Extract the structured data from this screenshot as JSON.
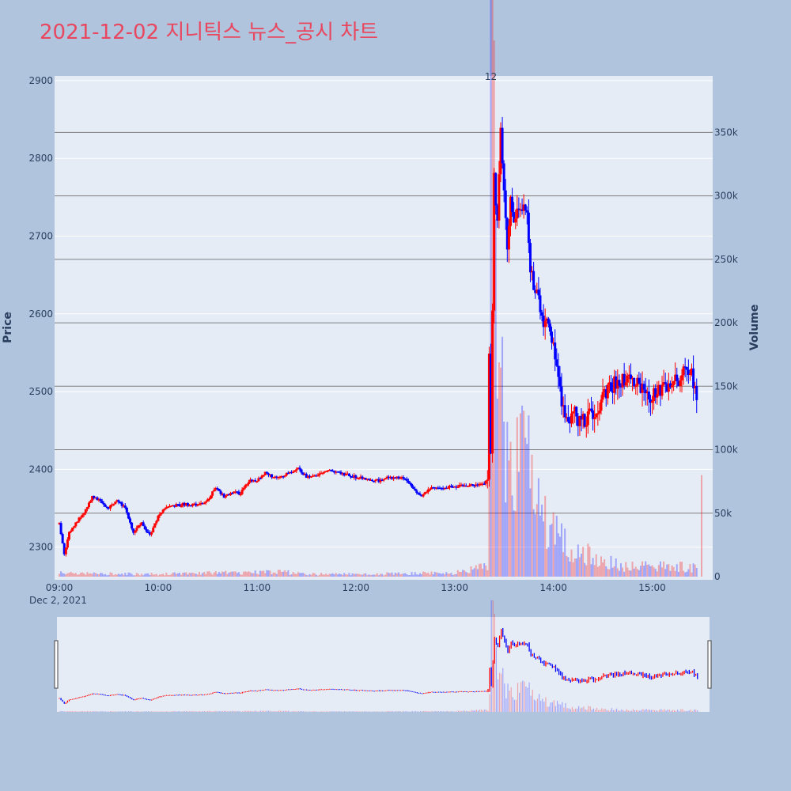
{
  "title": "2021-12-02 지니틱스 뉴스_공시 차트",
  "colors": {
    "background": "#b0c4de",
    "plot_bg": "#e5ecf6",
    "up": "#ff0000",
    "down": "#0000ff",
    "title": "#e8475f",
    "text": "#2a3f5f"
  },
  "chart_data": {
    "type": "candlestick",
    "title": "2021-12-02 지니틱스 뉴스_공시 차트",
    "y_title": "Price",
    "y2_title": "Volume",
    "x_date_label": "Dec 2, 2021",
    "x_ticks": [
      "09:00",
      "10:00",
      "11:00",
      "12:00",
      "13:00",
      "14:00",
      "15:00"
    ],
    "y_ticks": [
      2300,
      2400,
      2500,
      2600,
      2700,
      2800,
      2900
    ],
    "y2_ticks": [
      {
        "value": 0,
        "label": "0"
      },
      {
        "value": 50000,
        "label": "50k"
      },
      {
        "value": 100000,
        "label": "100k"
      },
      {
        "value": 150000,
        "label": "150k"
      },
      {
        "value": 200000,
        "label": "200k"
      },
      {
        "value": 250000,
        "label": "250k"
      },
      {
        "value": 300000,
        "label": "300k"
      },
      {
        "value": 350000,
        "label": "350k"
      }
    ],
    "ylim": [
      2258,
      2906
    ],
    "y2lim": [
      0,
      392000
    ],
    "x_range": [
      "09:00",
      "15:30"
    ],
    "annotation": {
      "text": "12",
      "time": "13:22"
    },
    "price_path": [
      [
        "09:00",
        2330
      ],
      [
        "09:03",
        2290
      ],
      [
        "09:06",
        2320
      ],
      [
        "09:10",
        2330
      ],
      [
        "09:15",
        2345
      ],
      [
        "09:20",
        2365
      ],
      [
        "09:25",
        2360
      ],
      [
        "09:30",
        2350
      ],
      [
        "09:35",
        2362
      ],
      [
        "09:40",
        2350
      ],
      [
        "09:45",
        2320
      ],
      [
        "09:50",
        2330
      ],
      [
        "09:55",
        2315
      ],
      [
        "10:00",
        2340
      ],
      [
        "10:05",
        2352
      ],
      [
        "10:15",
        2355
      ],
      [
        "10:25",
        2355
      ],
      [
        "10:30",
        2360
      ],
      [
        "10:35",
        2378
      ],
      [
        "10:40",
        2365
      ],
      [
        "10:45",
        2370
      ],
      [
        "10:50",
        2370
      ],
      [
        "10:55",
        2385
      ],
      [
        "11:00",
        2385
      ],
      [
        "11:05",
        2395
      ],
      [
        "11:10",
        2390
      ],
      [
        "11:20",
        2395
      ],
      [
        "11:25",
        2402
      ],
      [
        "11:30",
        2390
      ],
      [
        "11:45",
        2398
      ],
      [
        "12:00",
        2390
      ],
      [
        "12:15",
        2385
      ],
      [
        "12:20",
        2390
      ],
      [
        "12:30",
        2388
      ],
      [
        "12:35",
        2375
      ],
      [
        "12:40",
        2365
      ],
      [
        "12:45",
        2375
      ],
      [
        "13:00",
        2378
      ],
      [
        "13:15",
        2380
      ],
      [
        "13:20",
        2385
      ],
      [
        "13:21",
        2540
      ],
      [
        "13:22",
        2420
      ],
      [
        "13:24",
        2780
      ],
      [
        "13:26",
        2720
      ],
      [
        "13:28",
        2830
      ],
      [
        "13:30",
        2760
      ],
      [
        "13:32",
        2690
      ],
      [
        "13:34",
        2740
      ],
      [
        "13:36",
        2710
      ],
      [
        "13:38",
        2740
      ],
      [
        "13:40",
        2730
      ],
      [
        "13:42",
        2750
      ],
      [
        "13:44",
        2720
      ],
      [
        "13:46",
        2660
      ],
      [
        "13:48",
        2640
      ],
      [
        "13:50",
        2630
      ],
      [
        "13:52",
        2600
      ],
      [
        "13:54",
        2590
      ],
      [
        "13:56",
        2600
      ],
      [
        "13:58",
        2580
      ],
      [
        "14:00",
        2560
      ],
      [
        "14:02",
        2530
      ],
      [
        "14:04",
        2500
      ],
      [
        "14:06",
        2480
      ],
      [
        "14:08",
        2460
      ],
      [
        "14:10",
        2470
      ],
      [
        "14:12",
        2475
      ],
      [
        "14:14",
        2465
      ],
      [
        "14:16",
        2460
      ],
      [
        "14:18",
        2470
      ],
      [
        "14:20",
        2460
      ],
      [
        "14:22",
        2470
      ],
      [
        "14:24",
        2475
      ],
      [
        "14:26",
        2480
      ],
      [
        "14:30",
        2490
      ],
      [
        "14:35",
        2505
      ],
      [
        "14:40",
        2515
      ],
      [
        "14:45",
        2520
      ],
      [
        "14:50",
        2510
      ],
      [
        "14:55",
        2500
      ],
      [
        "15:00",
        2495
      ],
      [
        "15:05",
        2500
      ],
      [
        "15:10",
        2508
      ],
      [
        "15:15",
        2515
      ],
      [
        "15:20",
        2525
      ],
      [
        "15:22",
        2530
      ],
      [
        "15:25",
        2515
      ],
      [
        "15:27",
        2500
      ]
    ],
    "volume_path": [
      [
        "09:00",
        3000
      ],
      [
        "09:30",
        2500
      ],
      [
        "10:00",
        2000
      ],
      [
        "10:30",
        3000
      ],
      [
        "11:00",
        3500
      ],
      [
        "11:15",
        4000
      ],
      [
        "11:30",
        2000
      ],
      [
        "12:00",
        2000
      ],
      [
        "12:30",
        2500
      ],
      [
        "13:00",
        3000
      ],
      [
        "13:20",
        8000
      ],
      [
        "13:21",
        60000
      ],
      [
        "13:22",
        380000
      ],
      [
        "13:24",
        300000
      ],
      [
        "13:26",
        220000
      ],
      [
        "13:28",
        180000
      ],
      [
        "13:30",
        150000
      ],
      [
        "13:34",
        120000
      ],
      [
        "13:38",
        90000
      ],
      [
        "13:42",
        100000
      ],
      [
        "13:46",
        80000
      ],
      [
        "13:50",
        60000
      ],
      [
        "13:55",
        45000
      ],
      [
        "14:00",
        35000
      ],
      [
        "14:05",
        28000
      ],
      [
        "14:10",
        22000
      ],
      [
        "14:20",
        18000
      ],
      [
        "14:30",
        12000
      ],
      [
        "14:45",
        9000
      ],
      [
        "15:00",
        8000
      ],
      [
        "15:15",
        9000
      ],
      [
        "15:25",
        7000
      ],
      [
        "15:28",
        5000
      ]
    ],
    "closing_auction": {
      "time": "15:30",
      "volume": 80000
    }
  }
}
